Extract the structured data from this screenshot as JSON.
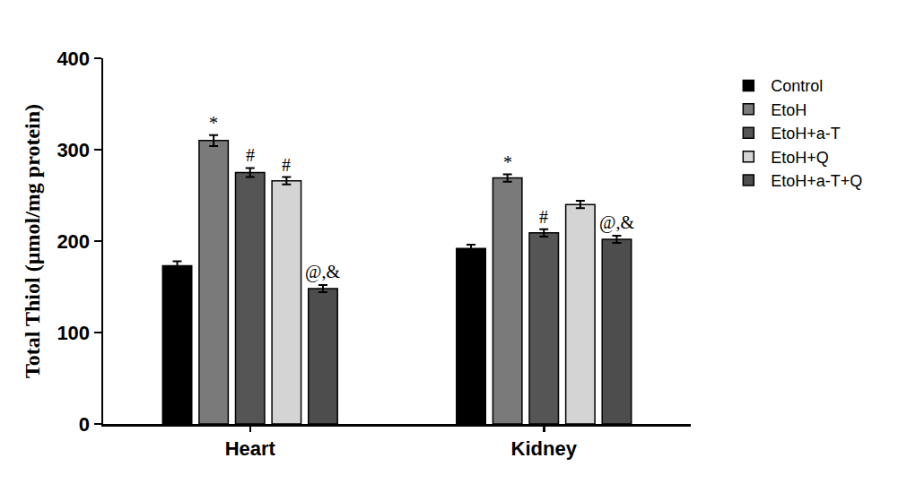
{
  "chart_data": {
    "type": "bar",
    "y_label": "Total Thiol (µmol/mg protein)",
    "categories": [
      "Heart",
      "Kidney"
    ],
    "series": [
      {
        "name": "Control",
        "color": "#000000",
        "values": [
          173,
          192
        ],
        "errors": [
          5,
          4
        ],
        "annotations": [
          null,
          null
        ]
      },
      {
        "name": "EtoH",
        "color": "#7a7a7a",
        "values": [
          310,
          269
        ],
        "errors": [
          6,
          4
        ],
        "annotations": [
          "*",
          "*"
        ]
      },
      {
        "name": "EtoH+a-T",
        "color": "#555555",
        "values": [
          275,
          209
        ],
        "errors": [
          5,
          4
        ],
        "annotations": [
          "#",
          "#"
        ]
      },
      {
        "name": "EtoH+Q",
        "color": "#d4d4d4",
        "values": [
          266,
          240
        ],
        "errors": [
          4,
          4
        ],
        "annotations": [
          "#",
          null
        ]
      },
      {
        "name": "EtoH+a-T+Q",
        "color": "#4d4d4d",
        "values": [
          148,
          202
        ],
        "errors": [
          4,
          4
        ],
        "annotations": [
          "@,&",
          "@,&"
        ]
      }
    ],
    "ylim": [
      0,
      400
    ],
    "yticks": [
      0,
      100,
      200,
      300,
      400
    ],
    "grid": false,
    "legend": "right"
  }
}
